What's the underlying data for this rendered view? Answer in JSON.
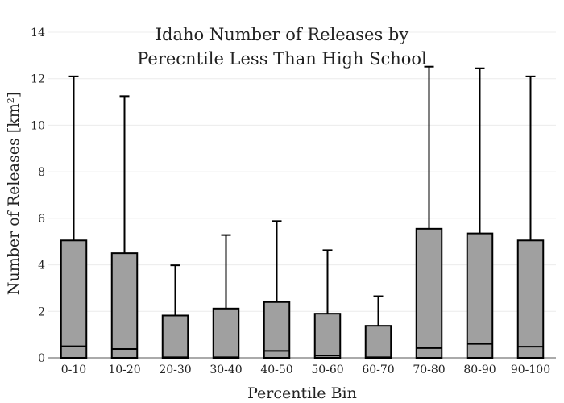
{
  "chart_data": {
    "type": "box",
    "title": [
      "Idaho Number of Releases by",
      "Perecntile Less Than High School"
    ],
    "xlabel": "Percentile Bin",
    "ylabel_main": "Number of Releases  [km",
    "ylabel_sup": "2",
    "ylabel_end": "]",
    "ylim": [
      0,
      14
    ],
    "yticks": [
      0,
      2,
      4,
      6,
      8,
      10,
      12,
      14
    ],
    "grid": true,
    "box_color": "#a0a0a0",
    "categories": [
      "0-10",
      "10-20",
      "20-30",
      "30-40",
      "40-50",
      "50-60",
      "60-70",
      "70-80",
      "80-90",
      "90-100"
    ],
    "boxes": [
      {
        "min": 0,
        "q1": 0,
        "median": 0.5,
        "q3": 5.05,
        "max": 12.1
      },
      {
        "min": 0,
        "q1": 0,
        "median": 0.38,
        "q3": 4.5,
        "max": 11.25
      },
      {
        "min": 0,
        "q1": 0,
        "median": 0.02,
        "q3": 1.82,
        "max": 3.98
      },
      {
        "min": 0,
        "q1": 0,
        "median": 0.02,
        "q3": 2.12,
        "max": 5.28
      },
      {
        "min": 0,
        "q1": 0,
        "median": 0.3,
        "q3": 2.4,
        "max": 5.88
      },
      {
        "min": 0,
        "q1": 0,
        "median": 0.1,
        "q3": 1.9,
        "max": 4.63
      },
      {
        "min": 0,
        "q1": 0,
        "median": 0.02,
        "q3": 1.38,
        "max": 2.65
      },
      {
        "min": 0,
        "q1": 0,
        "median": 0.42,
        "q3": 5.55,
        "max": 12.52
      },
      {
        "min": 0,
        "q1": 0,
        "median": 0.6,
        "q3": 5.35,
        "max": 12.45
      },
      {
        "min": 0,
        "q1": 0,
        "median": 0.48,
        "q3": 5.05,
        "max": 12.1
      }
    ]
  }
}
